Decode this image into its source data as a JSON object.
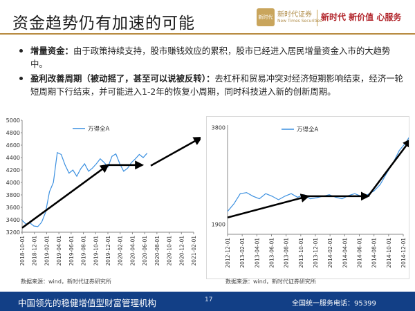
{
  "header": {
    "title": "资金趋势仍有加速的可能",
    "logo_mark": "新时代",
    "logo_cn": "新时代证券",
    "logo_en": "New Times Securities",
    "slogan": "新时代 新价值 心服务"
  },
  "bullets": [
    {
      "label": "增量资金：",
      "text": "由于政策持续支持，股市赚钱效应的累积，股市已经进入居民增量资金入市的大趋势中。"
    },
    {
      "label": "盈利改善周期（被动摇了，甚至可以说被反转）：",
      "text": "去杠杆和贸易冲突对经济短期影响结束，经济一轮短周期下行结束，并可能进入1-2年的恢复小周期，同时科技进入新的创新周期。"
    }
  ],
  "chart_data": [
    {
      "type": "line",
      "series": [
        {
          "name": "万得全A"
        }
      ],
      "yticks": [
        3200,
        3400,
        3600,
        3800,
        4000,
        4200,
        4400,
        4600,
        4800,
        5000
      ],
      "ylim": [
        3200,
        5000
      ],
      "xticks": [
        "2018-10-01",
        "2018-12-01",
        "2019-02-01",
        "2019-04-01",
        "2019-06-01",
        "2019-08-01",
        "2019-10-01",
        "2019-12-01",
        "2020-02-01",
        "2020-04-01",
        "2020-06-01",
        "2020-08-01",
        "2020-10-01",
        "2020-12-01",
        "2021-02-01"
      ],
      "values": [
        3390,
        3330,
        3350,
        3300,
        3290,
        3360,
        3520,
        3850,
        4000,
        4480,
        4450,
        4280,
        4150,
        4200,
        4100,
        4220,
        4300,
        4180,
        4230,
        4300,
        4380,
        4320,
        4250,
        4420,
        4460,
        4300,
        4180,
        4230,
        4320,
        4380,
        4450,
        4400,
        4470
      ],
      "arrows": [
        {
          "from": [
            0,
            3270
          ],
          "to": [
            7,
            4280
          ]
        },
        {
          "from": [
            7,
            4280
          ],
          "to": [
            9.8,
            4280
          ]
        },
        {
          "from": [
            10.5,
            4270
          ],
          "to": [
            14.6,
            4720
          ]
        }
      ],
      "source": "数据来源：wind，新时代证券研究所"
    },
    {
      "type": "line",
      "series": [
        {
          "name": "万得全A"
        }
      ],
      "yticks": [
        1900,
        3800
      ],
      "ylim": [
        1700,
        3850
      ],
      "xticks": [
        "2012-12-01",
        "2013-02-01",
        "2013-04-01",
        "2013-06-01",
        "2013-08-01",
        "2013-10-01",
        "2013-12-01",
        "2014-02-01",
        "2014-04-01",
        "2014-06-01",
        "2014-08-01",
        "2014-10-01",
        "2014-12-01"
      ],
      "values": [
        2150,
        2300,
        2500,
        2520,
        2450,
        2400,
        2500,
        2450,
        2380,
        2450,
        2500,
        2430,
        2480,
        2400,
        2420,
        2450,
        2480,
        2430,
        2400,
        2460,
        2500,
        2450,
        2480,
        2550,
        2680,
        2900,
        3100,
        3350,
        3500,
        3700
      ],
      "arrows": [
        {
          "from": [
            0,
            2030
          ],
          "to": [
            5.5,
            2450
          ]
        },
        {
          "from": [
            5.5,
            2450
          ],
          "to": [
            9.6,
            2450
          ]
        },
        {
          "from": [
            9.6,
            2450
          ],
          "to": [
            12.5,
            3560
          ]
        }
      ],
      "source": "数据来源：wind，新时代证券研究所"
    }
  ],
  "footer": {
    "left": "中国领先的稳健增值型财富管理机构",
    "page": "17",
    "right": "全国统一服务电话：95399"
  }
}
